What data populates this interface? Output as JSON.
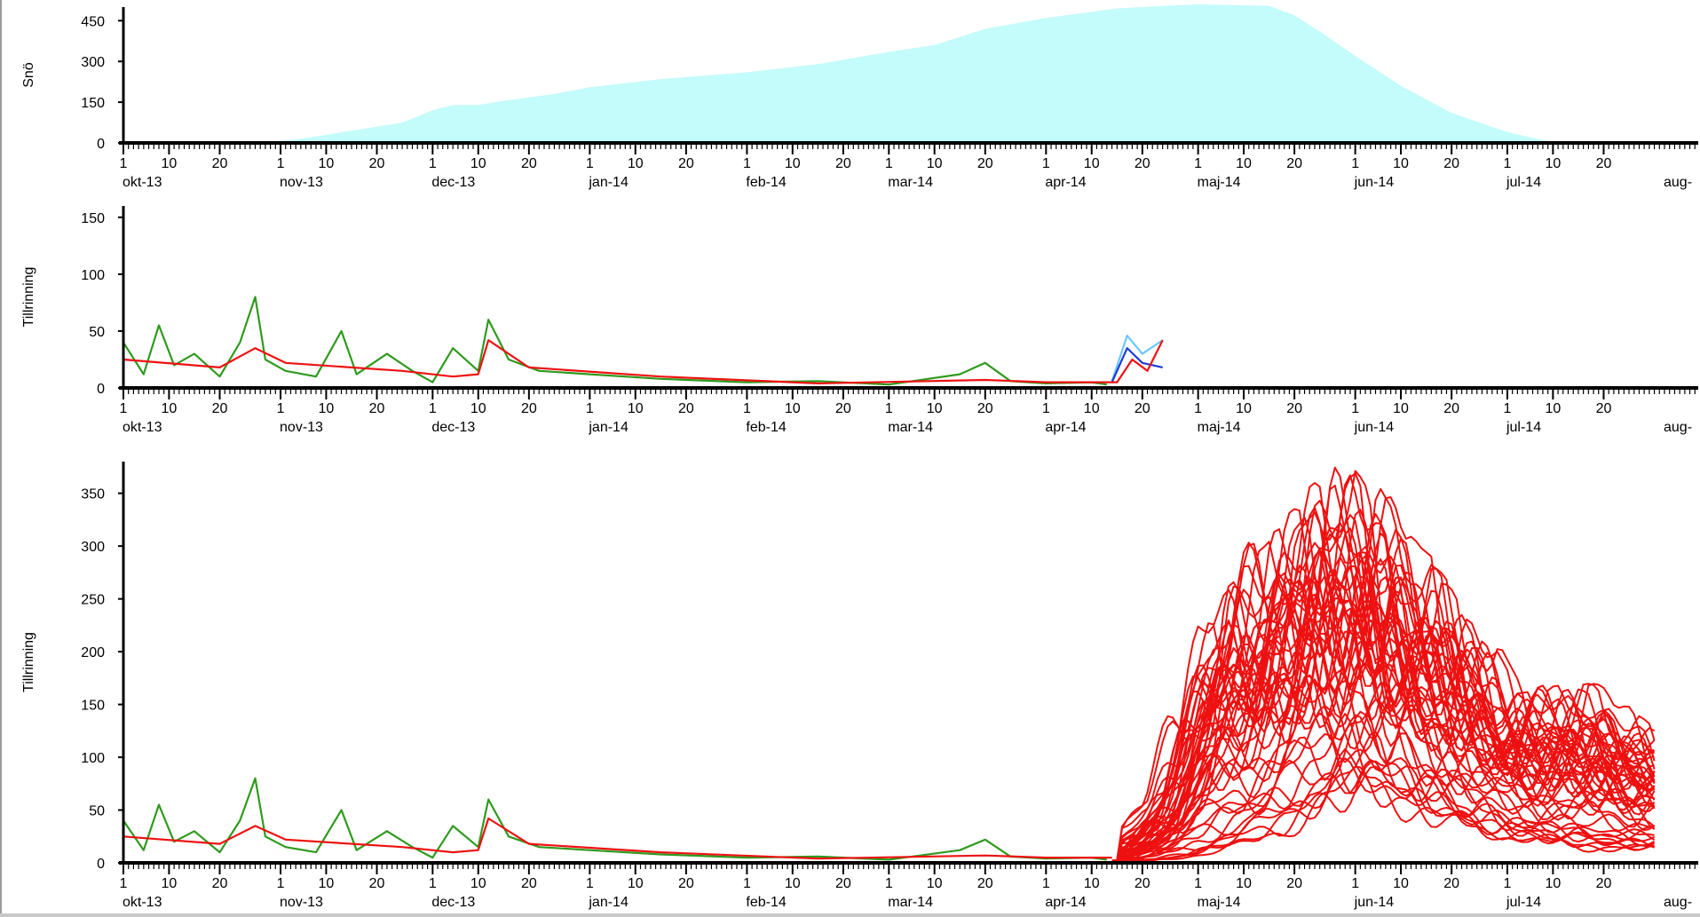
{
  "colors": {
    "snow_fill": "#c4fbfb",
    "observed": "#2f9a1e",
    "model": "#ee1111",
    "forecast_dark": "#1e3cd6",
    "forecast_light": "#6cc8ff",
    "axis": "#000000"
  },
  "chart_data": [
    {
      "type": "area",
      "ylabel": "Snö",
      "ylim": [
        0,
        500
      ],
      "yticks": [
        "0",
        "150",
        "300",
        "450"
      ],
      "x_months": [
        "okt-13",
        "nov-13",
        "dec-13",
        "jan-14",
        "feb-14",
        "mar-14",
        "apr-14",
        "maj-14",
        "jun-14",
        "jul-14",
        "aug-"
      ],
      "x_day_ticks": [
        "1",
        "10",
        "20"
      ],
      "series": [
        {
          "x": [
            "2013-10-01",
            "2013-10-28",
            "2013-11-05",
            "2013-11-15",
            "2013-11-25",
            "2013-12-01",
            "2013-12-05",
            "2013-12-10",
            "2013-12-15",
            "2013-12-25",
            "2014-01-01",
            "2014-01-15",
            "2014-02-01",
            "2014-02-15",
            "2014-03-01",
            "2014-03-10",
            "2014-03-20",
            "2014-04-01",
            "2014-04-15",
            "2014-04-25",
            "2014-05-01",
            "2014-05-15",
            "2014-05-20",
            "2014-05-25",
            "2014-06-01",
            "2014-06-10",
            "2014-06-20",
            "2014-07-01",
            "2014-07-08",
            "2014-07-12"
          ],
          "values": [
            0,
            0,
            15,
            45,
            75,
            120,
            140,
            140,
            155,
            180,
            205,
            235,
            260,
            290,
            335,
            360,
            420,
            460,
            495,
            505,
            510,
            505,
            470,
            410,
            320,
            210,
            110,
            40,
            10,
            0
          ]
        }
      ]
    },
    {
      "type": "line",
      "ylabel": "Tillrinning",
      "ylim": [
        0,
        160
      ],
      "yticks": [
        "0",
        "50",
        "100",
        "150"
      ],
      "x_months": [
        "okt-13",
        "nov-13",
        "dec-13",
        "jan-14",
        "feb-14",
        "mar-14",
        "apr-14",
        "maj-14",
        "jun-14",
        "jul-14",
        "aug-"
      ],
      "x_day_ticks": [
        "1",
        "10",
        "20"
      ],
      "series": [
        {
          "x": [
            "2013-10-01",
            "2013-10-05",
            "2013-10-08",
            "2013-10-11",
            "2013-10-15",
            "2013-10-20",
            "2013-10-24",
            "2013-10-27",
            "2013-10-29",
            "2013-11-02",
            "2013-11-08",
            "2013-11-13",
            "2013-11-16",
            "2013-11-22",
            "2013-11-27",
            "2013-12-01",
            "2013-12-05",
            "2013-12-10",
            "2013-12-12",
            "2013-12-16",
            "2013-12-22",
            "2014-01-01",
            "2014-01-15",
            "2014-02-01",
            "2014-02-15",
            "2014-03-01",
            "2014-03-15",
            "2014-03-20",
            "2014-03-25",
            "2014-04-01",
            "2014-04-10",
            "2014-04-13"
          ],
          "values": [
            40,
            12,
            55,
            20,
            30,
            10,
            40,
            80,
            25,
            15,
            10,
            50,
            12,
            30,
            15,
            5,
            35,
            15,
            60,
            25,
            15,
            12,
            8,
            5,
            6,
            3,
            12,
            22,
            6,
            4,
            5,
            3
          ]
        },
        {
          "x": [
            "2013-10-01",
            "2013-10-20",
            "2013-10-27",
            "2013-11-02",
            "2013-11-25",
            "2013-12-05",
            "2013-12-10",
            "2013-12-12",
            "2013-12-20",
            "2014-01-15",
            "2014-02-15",
            "2014-03-20",
            "2014-04-01",
            "2014-04-15",
            "2014-04-18",
            "2014-04-21",
            "2014-04-24"
          ],
          "values": [
            25,
            18,
            35,
            22,
            15,
            10,
            12,
            42,
            18,
            10,
            4,
            7,
            5,
            5,
            25,
            15,
            42
          ]
        },
        {
          "x": [
            "2014-04-14",
            "2014-04-17",
            "2014-04-20",
            "2014-04-24"
          ],
          "values": [
            5,
            35,
            22,
            18
          ]
        },
        {
          "x": [
            "2014-04-14",
            "2014-04-17",
            "2014-04-20",
            "2014-04-24"
          ],
          "values": [
            6,
            46,
            30,
            42
          ]
        }
      ]
    },
    {
      "type": "line",
      "ylabel": "Tillrinning",
      "ylim": [
        0,
        380
      ],
      "yticks": [
        "0",
        "50",
        "100",
        "150",
        "200",
        "250",
        "300",
        "350"
      ],
      "x_months": [
        "okt-13",
        "nov-13",
        "dec-13",
        "jan-14",
        "feb-14",
        "mar-14",
        "apr-14",
        "maj-14",
        "jun-14",
        "jul-14",
        "aug-"
      ],
      "x_day_ticks": [
        "1",
        "10",
        "20"
      ],
      "ensemble_members": 50,
      "ensemble_envelope": {
        "x": [
          "2014-04-14",
          "2014-04-25",
          "2014-05-05",
          "2014-05-15",
          "2014-05-20",
          "2014-06-01",
          "2014-06-10",
          "2014-06-20",
          "2014-07-01",
          "2014-07-15",
          "2014-07-30"
        ],
        "max": [
          5,
          70,
          260,
          300,
          330,
          375,
          300,
          260,
          160,
          170,
          125
        ],
        "min": [
          0,
          5,
          15,
          30,
          50,
          80,
          60,
          40,
          25,
          15,
          12
        ]
      },
      "series": [
        {
          "x": [
            "2013-10-01",
            "2013-10-05",
            "2013-10-08",
            "2013-10-11",
            "2013-10-15",
            "2013-10-20",
            "2013-10-24",
            "2013-10-27",
            "2013-10-29",
            "2013-11-02",
            "2013-11-08",
            "2013-11-13",
            "2013-11-16",
            "2013-11-22",
            "2013-11-27",
            "2013-12-01",
            "2013-12-05",
            "2013-12-10",
            "2013-12-12",
            "2013-12-16",
            "2013-12-22",
            "2014-01-01",
            "2014-01-15",
            "2014-02-01",
            "2014-02-15",
            "2014-03-01",
            "2014-03-15",
            "2014-03-20",
            "2014-03-25",
            "2014-04-01",
            "2014-04-10",
            "2014-04-13"
          ],
          "values": [
            40,
            12,
            55,
            20,
            30,
            10,
            40,
            80,
            25,
            15,
            10,
            50,
            12,
            30,
            15,
            5,
            35,
            15,
            60,
            25,
            15,
            12,
            8,
            5,
            6,
            3,
            12,
            22,
            6,
            4,
            5,
            3
          ]
        },
        {
          "x": [
            "2013-10-01",
            "2013-10-20",
            "2013-10-27",
            "2013-11-02",
            "2013-11-25",
            "2013-12-05",
            "2013-12-10",
            "2013-12-12",
            "2013-12-20",
            "2014-01-15",
            "2014-02-15",
            "2014-03-20",
            "2014-04-01",
            "2014-04-14"
          ],
          "values": [
            25,
            18,
            35,
            22,
            15,
            10,
            12,
            42,
            18,
            10,
            4,
            7,
            5,
            5
          ]
        }
      ]
    }
  ]
}
